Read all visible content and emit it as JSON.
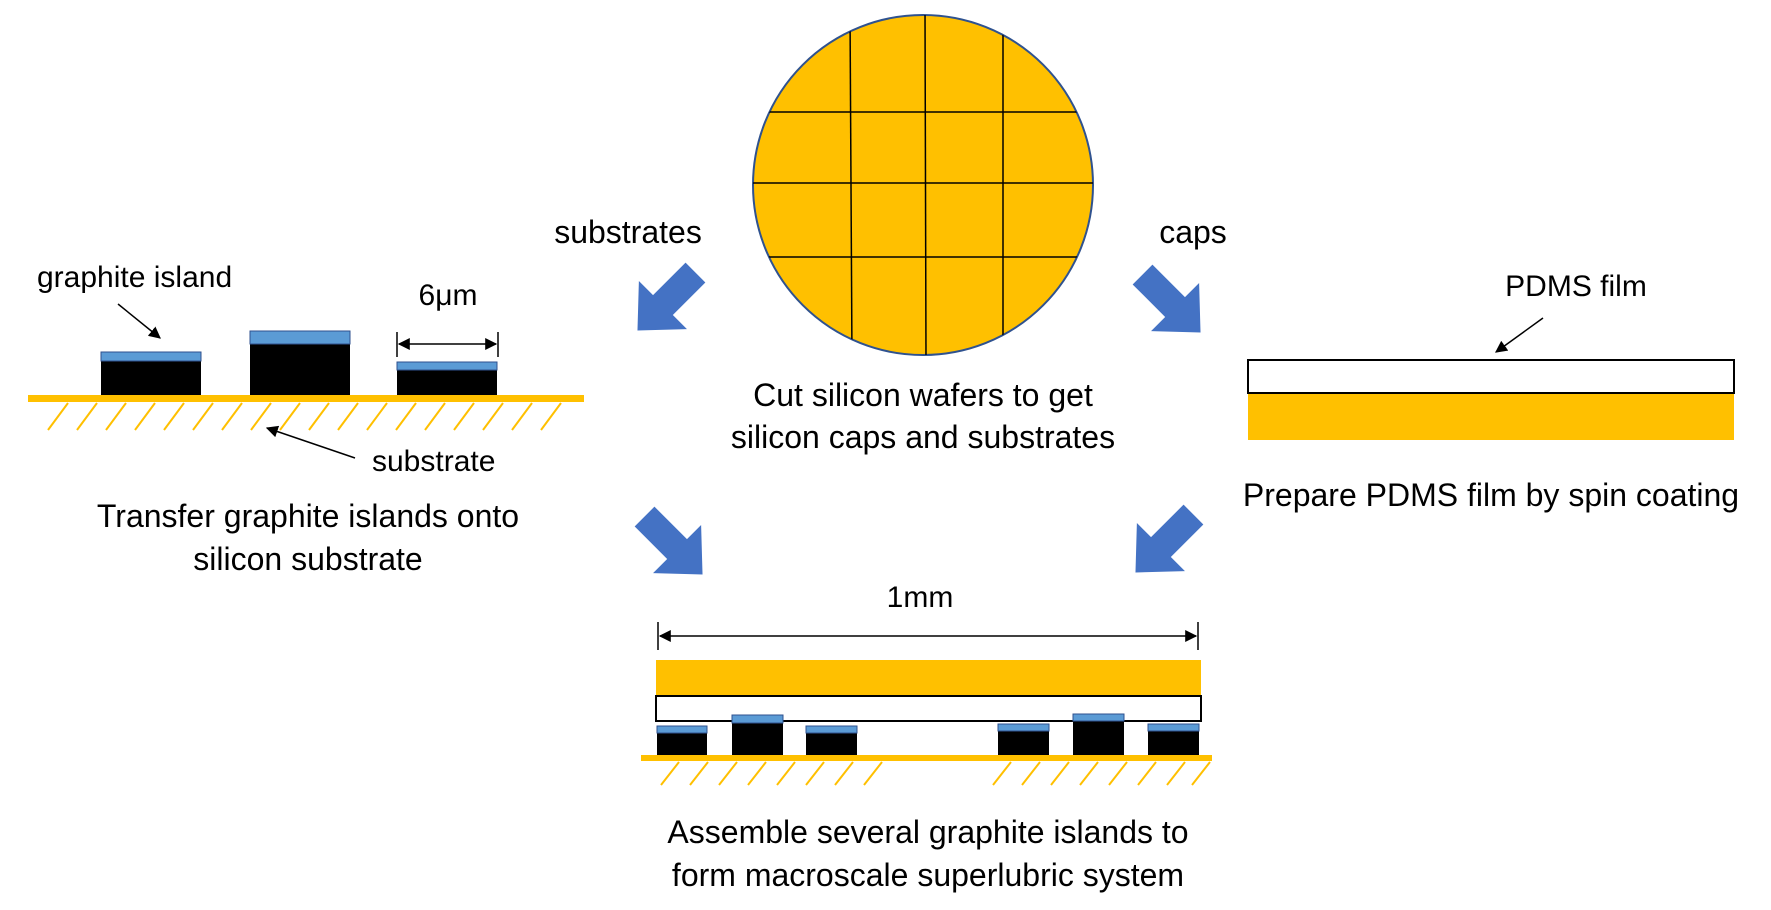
{
  "colors": {
    "silicon": "#FFC000",
    "wafer_outline": "#2F528F",
    "graphite": "#000000",
    "graphene_top": "#5B9BD5",
    "process_arrow": "#4472C4",
    "line": "#000000"
  },
  "wafer": {
    "caption_line1": "Cut silicon wafers to get",
    "caption_line2": "silicon caps and substrates"
  },
  "branches": {
    "substrates_label": "substrates",
    "caps_label": "caps"
  },
  "substrate_panel": {
    "label_graphite_island": "graphite island",
    "label_width": "6μm",
    "label_substrate": "substrate",
    "caption_line1": "Transfer graphite islands onto",
    "caption_line2": "silicon substrate"
  },
  "cap_panel": {
    "label_pdms": "PDMS film",
    "caption": "Prepare PDMS film by spin coating"
  },
  "assembly_panel": {
    "label_length": "1mm",
    "caption_line1": "Assemble several graphite islands to",
    "caption_line2": "form macroscale superlubric system"
  }
}
